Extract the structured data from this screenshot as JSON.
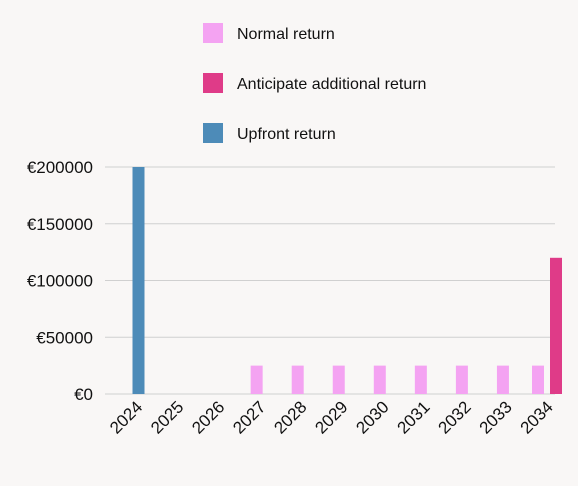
{
  "chart_data": {
    "type": "bar",
    "categories": [
      "2024",
      "2025",
      "2026",
      "2027",
      "2028",
      "2029",
      "2030",
      "2031",
      "2032",
      "2033",
      "2034"
    ],
    "series": [
      {
        "name": "Normal return",
        "color": "#f4a3f2",
        "values": [
          0,
          0,
          0,
          25000,
          25000,
          25000,
          25000,
          25000,
          25000,
          25000,
          25000
        ]
      },
      {
        "name": "Anticipate additional return",
        "color": "#df3b88",
        "values": [
          0,
          0,
          0,
          0,
          0,
          0,
          0,
          0,
          0,
          0,
          120000
        ]
      },
      {
        "name": "Upfront return",
        "color": "#4d8bb8",
        "values": [
          200000,
          0,
          0,
          0,
          0,
          0,
          0,
          0,
          0,
          0,
          0
        ]
      }
    ],
    "y_ticks": [
      "€0",
      "€50000",
      "€100000",
      "€150000",
      "€200000"
    ],
    "y_tick_values": [
      0,
      50000,
      100000,
      150000,
      200000
    ],
    "ylim": [
      0,
      200000
    ],
    "grid": true,
    "legend_position": "top"
  }
}
